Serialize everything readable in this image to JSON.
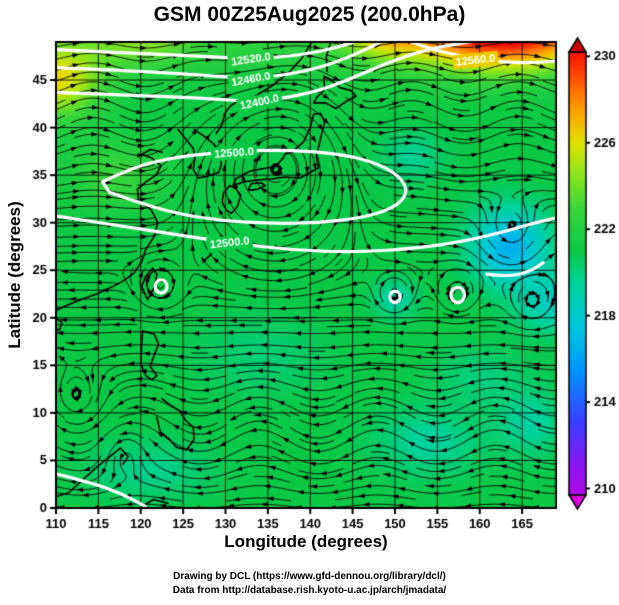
{
  "title": "GSM 00Z25Aug2025 (200.0hPa)",
  "credits": {
    "line1": "Drawing by DCL (https://www.gfd-dennou.org/library/dcl/)",
    "line2": "Data from http://database.rish.kyoto-u.ac.jp/arch/jmadata/"
  },
  "chart_data": {
    "type": "heatmap",
    "title": "GSM 00Z25Aug2025 (200.0hPa)",
    "xlabel": "Longitude (degrees)",
    "ylabel": "Latitude (degrees)",
    "xlim": [
      110,
      169
    ],
    "ylim": [
      0,
      49
    ],
    "x_ticks": [
      110,
      115,
      120,
      125,
      130,
      135,
      140,
      145,
      150,
      155,
      160,
      165
    ],
    "y_ticks": [
      0,
      5,
      10,
      15,
      20,
      25,
      30,
      35,
      40,
      45
    ],
    "grid": true,
    "colorbar": {
      "ticks": [
        210,
        214,
        218,
        222,
        226,
        230
      ],
      "vmin": 209.7,
      "vmax": 230.2,
      "scale": [
        [
          208,
          "#e000e0"
        ],
        [
          211,
          "#8c14f0"
        ],
        [
          213,
          "#3c3cff"
        ],
        [
          215.5,
          "#0096ff"
        ],
        [
          217.5,
          "#00c8dc"
        ],
        [
          219.5,
          "#00d29b"
        ],
        [
          221,
          "#0ac846"
        ],
        [
          223,
          "#3cd73c"
        ],
        [
          224.5,
          "#8ce61e"
        ],
        [
          226,
          "#e1e100"
        ],
        [
          227.5,
          "#ffa000"
        ],
        [
          229,
          "#ff5000"
        ],
        [
          230.5,
          "#ef0000"
        ],
        [
          232,
          "#cd0000"
        ]
      ]
    },
    "base_temp": 221,
    "temp_blobs": [
      {
        "lon": 163,
        "lat": 51,
        "sx": 11,
        "sy": 4.5,
        "dt": 11
      },
      {
        "lon": 149,
        "lat": 50.5,
        "sx": 5,
        "sy": 3,
        "dt": 4
      },
      {
        "lon": 110,
        "lat": 45,
        "sx": 5.5,
        "sy": 4,
        "dt": 5
      },
      {
        "lon": 120,
        "lat": 49.5,
        "sx": 6,
        "sy": 3,
        "dt": 2.5
      },
      {
        "lon": 139,
        "lat": 50,
        "sx": 35,
        "sy": 5,
        "dt": 1.5
      },
      {
        "lon": 117,
        "lat": 35,
        "sx": 6,
        "sy": 4,
        "dt": 1.8
      },
      {
        "lon": 152,
        "lat": 37,
        "sx": 3.5,
        "sy": 2.5,
        "dt": -1.4
      },
      {
        "lon": 163.5,
        "lat": 27.5,
        "sx": 4.5,
        "sy": 4,
        "dt": -4.5
      },
      {
        "lon": 168.5,
        "lat": 21.5,
        "sx": 4,
        "sy": 3,
        "dt": -2.5
      },
      {
        "lon": 150,
        "lat": 22,
        "sx": 2.5,
        "sy": 2,
        "dt": -1.8
      },
      {
        "lon": 154,
        "lat": 7,
        "sx": 6,
        "sy": 3.5,
        "dt": -1.6
      },
      {
        "lon": 166,
        "lat": 9,
        "sx": 4,
        "sy": 3.5,
        "dt": -1.6
      },
      {
        "lon": 121,
        "lat": 4,
        "sx": 7,
        "sy": 3,
        "dt": -1.3
      },
      {
        "lon": 134,
        "lat": 16,
        "sx": 7,
        "sy": 4,
        "dt": -0.9
      },
      {
        "lon": 160,
        "lat": 14,
        "sx": 5,
        "sy": 3,
        "dt": -1.0
      }
    ],
    "flow": {
      "u0": -0.55,
      "du": 1.9,
      "lat0": 29,
      "width": 4.5,
      "wave1": {
        "amp": 0.5,
        "k": 0.5,
        "phase": 108,
        "lat": 42,
        "sigma": 7
      },
      "wave2": {
        "amp": 0.28,
        "k": 0.45,
        "phase": 120,
        "lat": 8,
        "sigma": 6
      }
    },
    "vortices": [
      {
        "lon": 135.8,
        "lat": 36.2,
        "r": 6.5,
        "s": -1.7
      },
      {
        "lon": 122.3,
        "lat": 23.4,
        "r": 2.2,
        "s": -1.0
      },
      {
        "lon": 149.9,
        "lat": 22.2,
        "r": 1.9,
        "s": -0.9
      },
      {
        "lon": 157.4,
        "lat": 22.4,
        "r": 1.9,
        "s": -0.9
      },
      {
        "lon": 163.8,
        "lat": 29.2,
        "r": 3.0,
        "s": 0.9
      },
      {
        "lon": 166.2,
        "lat": 21.6,
        "r": 2.2,
        "s": -0.8
      },
      {
        "lon": 112.3,
        "lat": 11.2,
        "r": 3.0,
        "s": -0.7
      },
      {
        "lon": 118.0,
        "lat": 6.0,
        "r": 2.6,
        "s": 0.6
      }
    ],
    "contours": {
      "color": "#ffffff",
      "width": 3.2,
      "lines": [
        {
          "pts": [
            [
              110,
              48.2
            ],
            [
              117,
              47.9
            ],
            [
              125,
              47.6
            ],
            [
              133,
              47.2
            ],
            [
              139,
              47.6
            ],
            [
              144,
              48.6
            ],
            [
              147.5,
              49.8
            ]
          ],
          "label": {
            "text": "12520.0",
            "lon": 133,
            "lat": 47.2,
            "angle": -8
          }
        },
        {
          "pts": [
            [
              110,
              46.3
            ],
            [
              118,
              46.0
            ],
            [
              126,
              45.6
            ],
            [
              133,
              45.1
            ],
            [
              139,
              45.8
            ],
            [
              143.5,
              47.0
            ],
            [
              147,
              48.4
            ],
            [
              150,
              49.8
            ]
          ],
          "label": {
            "text": "12460.0",
            "lon": 133,
            "lat": 45.1,
            "angle": -10
          }
        },
        {
          "pts": [
            [
              110,
              43.7
            ],
            [
              119,
              43.4
            ],
            [
              127,
              43.1
            ],
            [
              134,
              42.7
            ],
            [
              140,
              43.6
            ],
            [
              144.5,
              45.0
            ],
            [
              149,
              46.8
            ],
            [
              154,
              48.3
            ],
            [
              160,
              49.2
            ],
            [
              165,
              49.6
            ]
          ],
          "label": {
            "text": "12400.0",
            "lon": 134,
            "lat": 42.7,
            "angle": -12
          }
        },
        {
          "pts": [
            [
              149.5,
              49.8
            ],
            [
              153,
              48.6
            ],
            [
              157.5,
              47.5
            ],
            [
              162,
              46.9
            ],
            [
              166,
              46.8
            ],
            [
              169,
              47.0
            ]
          ],
          "label": {
            "text": "12560.0",
            "lon": 159.5,
            "lat": 47.1,
            "angle": -6
          }
        },
        {
          "pts": [
            [
              115.5,
              34.3
            ],
            [
              119,
              35.8
            ],
            [
              123.5,
              36.8
            ],
            [
              128,
              37.3
            ],
            [
              133,
              37.6
            ],
            [
              138,
              37.6
            ],
            [
              143,
              37.3
            ],
            [
              147.5,
              36.4
            ],
            [
              150.6,
              34.9
            ],
            [
              151.6,
              33.1
            ],
            [
              149.8,
              31.5
            ],
            [
              146,
              30.5
            ],
            [
              141,
              30.0
            ],
            [
              135.5,
              29.9
            ],
            [
              129.5,
              30.2
            ],
            [
              124,
              31.0
            ],
            [
              119.5,
              32.2
            ],
            [
              116.3,
              33.2
            ]
          ],
          "closed": true,
          "label": {
            "text": "12500.0",
            "lon": 131,
            "lat": 37.35,
            "angle": -4
          }
        },
        {
          "pts": [
            [
              110,
              30.7
            ],
            [
              116,
              29.9
            ],
            [
              123,
              28.9
            ],
            [
              130.5,
              27.9
            ],
            [
              138,
              27.1
            ],
            [
              145.5,
              26.9
            ],
            [
              152.5,
              27.3
            ],
            [
              158.5,
              28.1
            ],
            [
              163.5,
              29.2
            ],
            [
              166.5,
              30.0
            ],
            [
              169,
              30.5
            ]
          ],
          "label": {
            "text": "12500.0",
            "lon": 130.5,
            "lat": 27.9,
            "angle": -6
          }
        },
        {
          "pts": [
            [
              110,
              3.6
            ],
            [
              114,
              2.7
            ],
            [
              117.5,
              1.6
            ],
            [
              120.5,
              0.2
            ]
          ]
        },
        {
          "pts": [
            [
              160.8,
              24.6
            ],
            [
              163.5,
              24.3
            ],
            [
              166,
              24.9
            ],
            [
              167.5,
              25.8
            ]
          ]
        },
        {
          "circle": [
            157.4,
            22.4,
            0.8
          ]
        },
        {
          "circle": [
            150.0,
            22.2,
            0.6
          ]
        },
        {
          "circle": [
            122.4,
            23.3,
            0.7
          ]
        }
      ]
    },
    "coastlines": [
      [
        [
          110,
          20.8
        ],
        [
          111.8,
          21.5
        ],
        [
          113.2,
          22.0
        ],
        [
          114.8,
          22.5
        ],
        [
          116.5,
          23.2
        ],
        [
          117.8,
          23.8
        ],
        [
          119.2,
          24.7
        ],
        [
          120.1,
          25.9
        ],
        [
          120.6,
          27.2
        ],
        [
          121.6,
          28.6
        ],
        [
          122.0,
          30.0
        ],
        [
          121.2,
          31.4
        ],
        [
          119.8,
          32.2
        ],
        [
          119.6,
          33.5
        ],
        [
          120.6,
          34.3
        ],
        [
          121.8,
          35.0
        ],
        [
          122.4,
          36.0
        ],
        [
          121.3,
          36.8
        ],
        [
          120.1,
          37.2
        ],
        [
          121.2,
          37.7
        ],
        [
          122.5,
          37.4
        ]
      ],
      [
        [
          124.4,
          39.8
        ],
        [
          125.4,
          38.7
        ],
        [
          126.2,
          37.8
        ],
        [
          126.4,
          36.9
        ],
        [
          126.2,
          35.6
        ],
        [
          126.8,
          34.7
        ],
        [
          127.9,
          34.9
        ],
        [
          128.6,
          35.1
        ],
        [
          129.2,
          35.3
        ],
        [
          129.5,
          36.1
        ],
        [
          129.4,
          37.2
        ],
        [
          128.6,
          38.3
        ],
        [
          127.3,
          39.2
        ],
        [
          126.3,
          39.8
        ]
      ],
      [
        [
          130.9,
          33.9
        ],
        [
          132.2,
          34.3
        ],
        [
          134.0,
          34.5
        ],
        [
          135.4,
          34.6
        ],
        [
          137.0,
          34.8
        ],
        [
          138.8,
          34.7
        ],
        [
          139.8,
          35.2
        ],
        [
          141.0,
          35.8
        ],
        [
          140.7,
          37.0
        ],
        [
          141.1,
          38.4
        ],
        [
          141.7,
          40.6
        ],
        [
          141.2,
          41.5
        ],
        [
          140.4,
          41.4
        ],
        [
          140.0,
          40.0
        ],
        [
          139.2,
          38.5
        ],
        [
          137.8,
          37.4
        ],
        [
          137.0,
          37.2
        ],
        [
          136.8,
          36.8
        ],
        [
          135.9,
          35.9
        ],
        [
          134.5,
          35.7
        ],
        [
          132.8,
          35.4
        ],
        [
          131.2,
          34.6
        ],
        [
          130.9,
          33.9
        ]
      ],
      [
        [
          130.1,
          31.3
        ],
        [
          129.6,
          32.2
        ],
        [
          129.8,
          33.2
        ],
        [
          130.5,
          33.9
        ],
        [
          131.2,
          33.6
        ],
        [
          131.8,
          32.9
        ],
        [
          131.4,
          31.7
        ],
        [
          130.7,
          31.0
        ],
        [
          130.1,
          31.3
        ]
      ],
      [
        [
          132.7,
          33.4
        ],
        [
          133.7,
          33.5
        ],
        [
          134.7,
          33.9
        ],
        [
          134.2,
          34.2
        ],
        [
          133.0,
          34.1
        ],
        [
          132.7,
          33.4
        ]
      ],
      [
        [
          140.4,
          42.6
        ],
        [
          141.8,
          42.6
        ],
        [
          143.0,
          42.0
        ],
        [
          144.5,
          42.9
        ],
        [
          145.4,
          43.3
        ],
        [
          144.8,
          43.9
        ],
        [
          143.5,
          44.2
        ],
        [
          142.5,
          45.0
        ],
        [
          141.6,
          45.4
        ],
        [
          141.7,
          44.0
        ],
        [
          140.8,
          43.2
        ],
        [
          140.4,
          42.6
        ]
      ],
      [
        [
          142.0,
          45.9
        ],
        [
          141.9,
          47.5
        ],
        [
          142.4,
          49.0
        ]
      ],
      [
        [
          140.2,
          49.0
        ],
        [
          139.0,
          47.3
        ],
        [
          137.5,
          45.8
        ],
        [
          135.5,
          44.4
        ],
        [
          133.3,
          43.2
        ],
        [
          131.5,
          42.8
        ],
        [
          130.6,
          42.3
        ],
        [
          129.9,
          41.5
        ],
        [
          129.6,
          40.3
        ],
        [
          128.9,
          39.4
        ]
      ],
      [
        [
          120.8,
          21.9
        ],
        [
          121.6,
          23.2
        ],
        [
          121.9,
          24.6
        ],
        [
          121.4,
          25.2
        ],
        [
          120.6,
          24.4
        ],
        [
          120.1,
          23.3
        ],
        [
          120.8,
          21.9
        ]
      ],
      [
        [
          120.2,
          18.6
        ],
        [
          121.6,
          18.3
        ],
        [
          122.1,
          17.2
        ],
        [
          121.6,
          16.1
        ],
        [
          121.1,
          14.9
        ],
        [
          121.9,
          13.9
        ],
        [
          121.3,
          13.5
        ],
        [
          120.6,
          13.9
        ],
        [
          120.0,
          15.2
        ],
        [
          120.1,
          16.9
        ],
        [
          120.2,
          18.6
        ]
      ],
      [
        [
          122.5,
          11.5
        ],
        [
          123.5,
          10.8
        ],
        [
          124.6,
          10.2
        ],
        [
          125.3,
          9.2
        ],
        [
          126.2,
          8.5
        ],
        [
          126.3,
          7.2
        ],
        [
          125.4,
          6.1
        ],
        [
          124.2,
          6.4
        ],
        [
          123.3,
          7.3
        ],
        [
          122.3,
          8.0
        ],
        [
          121.9,
          9.5
        ]
      ],
      [
        [
          110,
          20.0
        ],
        [
          110.7,
          19.5
        ],
        [
          110.4,
          18.7
        ],
        [
          110,
          18.8
        ]
      ],
      [
        [
          110,
          1.2
        ],
        [
          111.5,
          1.6
        ],
        [
          113.2,
          3.0
        ],
        [
          114.8,
          4.3
        ],
        [
          116.2,
          5.3
        ],
        [
          117.6,
          6.3
        ],
        [
          118.5,
          5.4
        ],
        [
          117.9,
          4.6
        ]
      ],
      [
        [
          120.2,
          0.2
        ],
        [
          121.5,
          0.9
        ],
        [
          123.2,
          0.5
        ]
      ],
      [
        [
          127.6,
          26.1
        ],
        [
          128.3,
          26.7
        ]
      ],
      [
        [
          129.3,
          28.1
        ],
        [
          129.9,
          28.5
        ]
      ]
    ]
  }
}
